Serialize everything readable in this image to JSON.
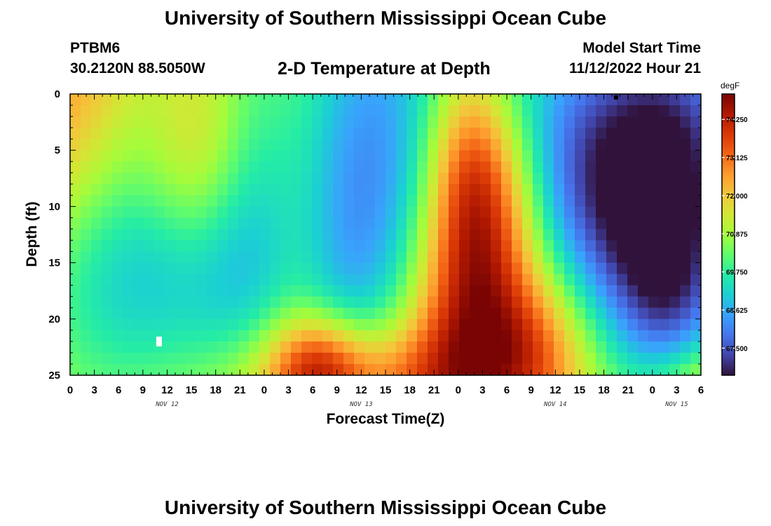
{
  "header": {
    "title": "University of Southern Mississippi Ocean Cube",
    "station": "PTBM6",
    "coordinates": "30.2120N  88.5050W",
    "subtitle": "2-D Temperature at Depth",
    "model_start_label": "Model Start Time",
    "model_start_value": "11/12/2022 Hour 21"
  },
  "footer": {
    "title": "University of Southern Mississippi Ocean Cube"
  },
  "colors": {
    "colormap": [
      "#30123b",
      "#4145ab",
      "#4675ed",
      "#39a2fc",
      "#1bcfd4",
      "#24eca6",
      "#61fc6c",
      "#a4fc3b",
      "#d1e834",
      "#f3c63a",
      "#fe9b2d",
      "#f36315",
      "#d93806",
      "#b11901",
      "#7a0403"
    ]
  },
  "chart_data": {
    "type": "heatmap",
    "title": "2-D Temperature at Depth",
    "xlabel": "Forecast Time(Z)",
    "ylabel": "Depth (ft)",
    "x_tick_labels": [
      "0",
      "3",
      "6",
      "9",
      "12",
      "15",
      "18",
      "21",
      "0",
      "3",
      "6",
      "9",
      "12",
      "15",
      "18",
      "21",
      "0",
      "3",
      "6",
      "9",
      "12",
      "15",
      "18",
      "21",
      "0",
      "3",
      "6"
    ],
    "x_range_hours": [
      0,
      78
    ],
    "date_labels": [
      {
        "label": "NOV 12",
        "hour": 12
      },
      {
        "label": "NOV 13",
        "hour": 36
      },
      {
        "label": "NOV 14",
        "hour": 60
      },
      {
        "label": "NOV 15",
        "hour": 75
      }
    ],
    "y_tick_labels": [
      "0",
      "5",
      "10",
      "15",
      "20",
      "25"
    ],
    "y_range_ft": [
      0,
      25
    ],
    "colorbar": {
      "unit": "degF",
      "ticks": [
        "74.250",
        "73.125",
        "72.000",
        "70.875",
        "69.750",
        "68.625",
        "67.500"
      ],
      "range": [
        66.7,
        75.0
      ]
    },
    "value_blobs": [
      {
        "hour": 0,
        "depth": 4,
        "value": 2.0,
        "sx": 10,
        "sy": 12
      },
      {
        "hour": 10,
        "depth": 14,
        "value": -3.2,
        "sx": 12,
        "sy": 9
      },
      {
        "hour": 12,
        "depth": 0,
        "value": -1.0,
        "sx": 6,
        "sy": 6
      },
      {
        "hour": 16,
        "depth": 5,
        "value": 2.5,
        "sx": 5,
        "sy": 8
      },
      {
        "hour": 12,
        "depth": 18,
        "value": 1.0,
        "sx": 18,
        "sy": 12
      },
      {
        "hour": 2,
        "depth": 20,
        "value": -1.0,
        "sx": 8,
        "sy": 10
      },
      {
        "hour": 22,
        "depth": 10,
        "value": -1.0,
        "sx": 8,
        "sy": 15
      },
      {
        "hour": 28,
        "depth": 12,
        "value": 1.5,
        "sx": 4,
        "sy": 15
      },
      {
        "hour": 38,
        "depth": 12,
        "value": -3.2,
        "sx": 12,
        "sy": 20
      },
      {
        "hour": 36,
        "depth": 26,
        "value": 3.0,
        "sx": 11,
        "sy": 4
      },
      {
        "hour": 31,
        "depth": 24,
        "value": 2.0,
        "sx": 4,
        "sy": 3
      },
      {
        "hour": 49,
        "depth": 6,
        "value": 2.5,
        "sx": 4,
        "sy": 8
      },
      {
        "hour": 48,
        "depth": 21,
        "value": 3.5,
        "sx": 6,
        "sy": 8
      },
      {
        "hour": 53,
        "depth": 17,
        "value": 1.5,
        "sx": 5,
        "sy": 7
      },
      {
        "hour": 52,
        "depth": 8,
        "value": 2.0,
        "sx": 5,
        "sy": 6
      },
      {
        "hour": 58,
        "depth": 23,
        "value": 2.0,
        "sx": 5,
        "sy": 5
      },
      {
        "hour": 72,
        "depth": 7,
        "value": -5.0,
        "sx": 12,
        "sy": 10
      },
      {
        "hour": 74,
        "depth": 18,
        "value": -2.0,
        "sx": 5,
        "sy": 8
      },
      {
        "hour": 78,
        "depth": 26,
        "value": 1.5,
        "sx": 5,
        "sy": 3
      },
      {
        "hour": 78,
        "depth": 10,
        "value": 0.8,
        "sx": 3,
        "sy": 6
      }
    ],
    "base_value": 71.2,
    "markers": [
      {
        "hour": 11,
        "depth": 22,
        "color": "#ffffff"
      },
      {
        "hour": 67.5,
        "depth": 0.3,
        "color": "#000000"
      }
    ]
  }
}
